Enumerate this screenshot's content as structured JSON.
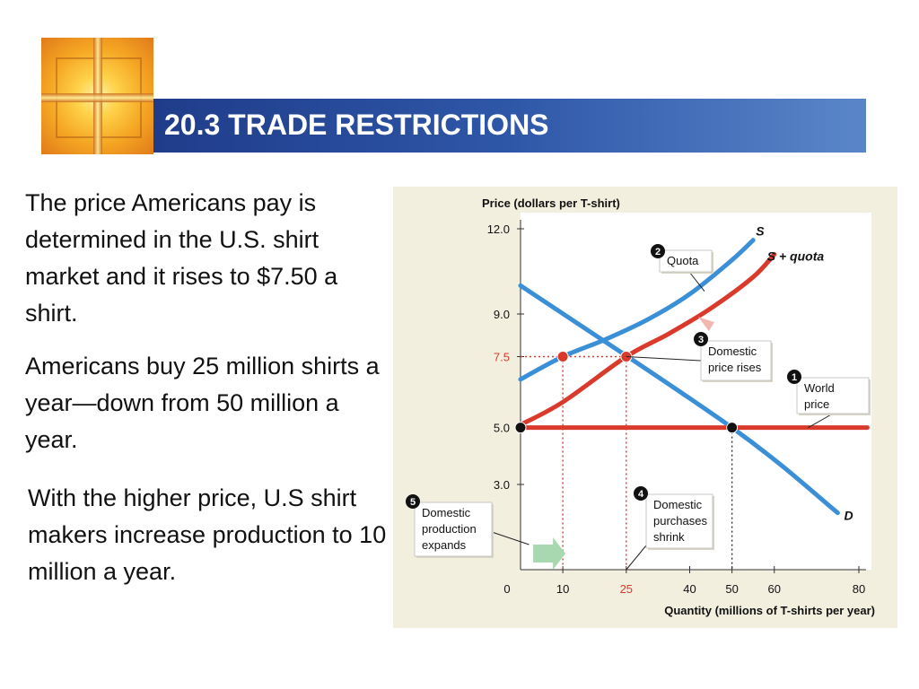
{
  "slide": {
    "title": "20.3 TRADE RESTRICTIONS",
    "paragraphs": [
      "The price Americans pay is determined in the U.S. shirt market and it rises to $7.50 a shirt.",
      "Americans buy 25 million shirts a year—down from 50 million a year.",
      "With the higher price, U.S shirt makers increase production to 10 million a year."
    ]
  },
  "chart_data": {
    "type": "line",
    "ylabel": "Price (dollars per T-shirt)",
    "xlabel": "Quantity (millions of T-shirts per year)",
    "xlim": [
      0,
      80
    ],
    "ylim": [
      0,
      12.0
    ],
    "x_ticks": [
      "0",
      "10",
      "25",
      "40",
      "50",
      "60",
      "80"
    ],
    "x_tick_values": [
      0,
      10,
      25,
      40,
      50,
      60,
      80
    ],
    "y_ticks": [
      "3.0",
      "5.0",
      "7.5",
      "9.0",
      "12.0"
    ],
    "y_tick_values": [
      3.0,
      5.0,
      7.5,
      9.0,
      12.0
    ],
    "highlight_color": "#d93a2b",
    "series": [
      {
        "name": "S",
        "color": "#3a8fd6",
        "x": [
          0,
          10,
          20,
          30,
          40,
          50,
          55
        ],
        "y": [
          6.7,
          7.5,
          8.1,
          8.8,
          9.7,
          10.9,
          11.6
        ]
      },
      {
        "name": "S + quota",
        "color": "#d93a2b",
        "x": [
          0,
          10,
          25,
          35,
          45,
          55,
          60
        ],
        "y": [
          5.1,
          5.9,
          7.5,
          8.3,
          9.2,
          10.3,
          11.1
        ]
      },
      {
        "name": "D",
        "color": "#3a8fd6",
        "x": [
          0,
          50,
          75
        ],
        "y": [
          10.0,
          5.0,
          2.0
        ]
      },
      {
        "name": "World price",
        "color": "#d93a2b",
        "x": [
          0,
          82
        ],
        "y": [
          5.0,
          5.0
        ]
      }
    ],
    "points": [
      {
        "x": 0,
        "y": 5.0,
        "color": "#111111"
      },
      {
        "x": 50,
        "y": 5.0,
        "color": "#111111"
      },
      {
        "x": 10,
        "y": 7.5,
        "color": "#d93a2b"
      },
      {
        "x": 25,
        "y": 7.5,
        "color": "#d93a2b"
      }
    ],
    "guides": [
      {
        "x": 50,
        "y": 5.0,
        "color": "#333333"
      },
      {
        "x": 10,
        "y": 7.5,
        "color": "#d93a2b"
      },
      {
        "x": 25,
        "y": 7.5,
        "color": "#d93a2b"
      }
    ],
    "annotations": [
      {
        "num": "1",
        "text": [
          "World",
          "price"
        ]
      },
      {
        "num": "2",
        "text": [
          "Quota"
        ]
      },
      {
        "num": "3",
        "text": [
          "Domestic",
          "price rises"
        ]
      },
      {
        "num": "4",
        "text": [
          "Domestic",
          "purchases",
          "shrink"
        ]
      },
      {
        "num": "5",
        "text": [
          "Domestic",
          "production",
          "expands"
        ]
      }
    ]
  }
}
